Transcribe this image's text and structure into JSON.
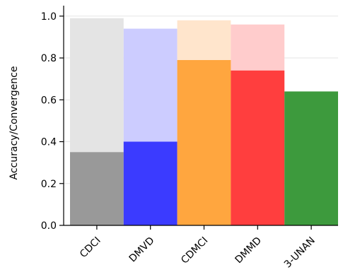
{
  "chart_data": {
    "type": "bar",
    "title": "",
    "xlabel": "",
    "ylabel": "Accuracy/Convergence",
    "ylim": [
      0,
      1.05
    ],
    "yticks": [
      "0.0",
      "0.2",
      "0.4",
      "0.6",
      "0.8",
      "1.0"
    ],
    "grid": true,
    "categories": [
      "CDCI",
      "DMVD",
      "CDMCI",
      "DMMD",
      "3-UNAN"
    ],
    "series": [
      {
        "values": [
          0.35,
          0.4,
          0.79,
          0.74,
          0.64
        ],
        "colors": [
          "#999999",
          "#3b3bff",
          "#ffa63f",
          "#ff3e3e",
          "#3d9a3d"
        ]
      },
      {
        "values": [
          0.99,
          0.94,
          0.98,
          0.96,
          null
        ],
        "colors": [
          "#e4e4e4",
          "#ccccff",
          "#ffe5cc",
          "#ffcccc",
          null
        ]
      }
    ]
  }
}
